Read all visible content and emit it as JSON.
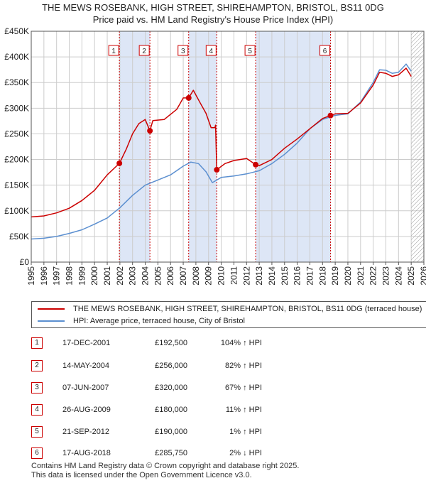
{
  "header": {
    "title_line1": "THE MEWS ROSEBANK, HIGH STREET, SHIREHAMPTON, BRISTOL, BS11 0DG",
    "title_line2": "Price paid vs. HM Land Registry's House Price Index (HPI)"
  },
  "colors": {
    "property": "#cc0000",
    "hpi": "#5b8fd0",
    "shade": "#dde6f6",
    "grid": "#cccccc"
  },
  "chart_data": {
    "type": "line",
    "xlim": [
      1995,
      2026
    ],
    "ylim": [
      0,
      450000
    ],
    "x_ticks": [
      "1995",
      "1996",
      "1997",
      "1998",
      "1999",
      "2000",
      "2001",
      "2002",
      "2003",
      "2004",
      "2005",
      "2006",
      "2007",
      "2008",
      "2009",
      "2010",
      "2011",
      "2012",
      "2013",
      "2014",
      "2015",
      "2016",
      "2017",
      "2018",
      "2019",
      "2020",
      "2021",
      "2022",
      "2023",
      "2024",
      "2025",
      "2026"
    ],
    "y_ticks": [
      {
        "value": 0,
        "label": "£0"
      },
      {
        "value": 50000,
        "label": "£50K"
      },
      {
        "value": 100000,
        "label": "£100K"
      },
      {
        "value": 150000,
        "label": "£150K"
      },
      {
        "value": 200000,
        "label": "£200K"
      },
      {
        "value": 250000,
        "label": "£250K"
      },
      {
        "value": 300000,
        "label": "£300K"
      },
      {
        "value": 350000,
        "label": "£350K"
      },
      {
        "value": 400000,
        "label": "£400K"
      },
      {
        "value": 450000,
        "label": "£450K"
      }
    ],
    "shaded_ranges": [
      [
        2001.96,
        2004.37
      ],
      [
        2007.43,
        2009.65
      ],
      [
        2012.72,
        2018.63
      ]
    ],
    "hatched_from": 2025.0,
    "series": [
      {
        "name": "THE MEWS ROSEBANK, HIGH STREET, SHIREHAMPTON, BRISTOL, BS11 0DG (terraced house)",
        "color": "#cc0000",
        "points": [
          [
            1995.0,
            88000
          ],
          [
            1996.0,
            90000
          ],
          [
            1997.0,
            96000
          ],
          [
            1998.0,
            105000
          ],
          [
            1999.0,
            120000
          ],
          [
            2000.0,
            140000
          ],
          [
            2001.0,
            170000
          ],
          [
            2001.96,
            192500
          ],
          [
            2002.5,
            220000
          ],
          [
            2003.0,
            250000
          ],
          [
            2003.5,
            270000
          ],
          [
            2004.0,
            278000
          ],
          [
            2004.37,
            256000
          ],
          [
            2004.6,
            276000
          ],
          [
            2005.5,
            278000
          ],
          [
            2006.5,
            298000
          ],
          [
            2007.0,
            320000
          ],
          [
            2007.43,
            320000
          ],
          [
            2007.8,
            335000
          ],
          [
            2008.3,
            312000
          ],
          [
            2008.8,
            290000
          ],
          [
            2009.2,
            262000
          ],
          [
            2009.5,
            262000
          ],
          [
            2009.55,
            267000
          ],
          [
            2009.65,
            180000
          ],
          [
            2010.3,
            192000
          ],
          [
            2011.0,
            198000
          ],
          [
            2012.0,
            202000
          ],
          [
            2012.72,
            190000
          ],
          [
            2013.0,
            188000
          ],
          [
            2014.0,
            200000
          ],
          [
            2015.0,
            222000
          ],
          [
            2016.0,
            240000
          ],
          [
            2017.0,
            260000
          ],
          [
            2018.0,
            280000
          ],
          [
            2018.63,
            285750
          ],
          [
            2019.0,
            289000
          ],
          [
            2020.0,
            290000
          ],
          [
            2021.0,
            310000
          ],
          [
            2022.0,
            345000
          ],
          [
            2022.5,
            370000
          ],
          [
            2023.0,
            368000
          ],
          [
            2023.5,
            362000
          ],
          [
            2024.0,
            365000
          ],
          [
            2024.6,
            378000
          ],
          [
            2025.0,
            362000
          ]
        ]
      },
      {
        "name": "HPI: Average price, terraced house, City of Bristol",
        "color": "#5b8fd0",
        "points": [
          [
            1995.0,
            45000
          ],
          [
            1996.0,
            46500
          ],
          [
            1997.0,
            50000
          ],
          [
            1998.0,
            56000
          ],
          [
            1999.0,
            63000
          ],
          [
            2000.0,
            74000
          ],
          [
            2001.0,
            86000
          ],
          [
            2002.0,
            106000
          ],
          [
            2003.0,
            130000
          ],
          [
            2004.0,
            150000
          ],
          [
            2005.0,
            160000
          ],
          [
            2006.0,
            170000
          ],
          [
            2007.0,
            187000
          ],
          [
            2007.6,
            195000
          ],
          [
            2008.2,
            192000
          ],
          [
            2008.8,
            176000
          ],
          [
            2009.3,
            155000
          ],
          [
            2010.0,
            165000
          ],
          [
            2011.0,
            168000
          ],
          [
            2012.0,
            172000
          ],
          [
            2013.0,
            178000
          ],
          [
            2014.0,
            192000
          ],
          [
            2015.0,
            210000
          ],
          [
            2016.0,
            232000
          ],
          [
            2017.0,
            260000
          ],
          [
            2018.0,
            278000
          ],
          [
            2019.0,
            286000
          ],
          [
            2020.0,
            289000
          ],
          [
            2021.0,
            312000
          ],
          [
            2022.0,
            350000
          ],
          [
            2022.5,
            375000
          ],
          [
            2023.0,
            374000
          ],
          [
            2023.5,
            368000
          ],
          [
            2024.0,
            370000
          ],
          [
            2024.6,
            386000
          ],
          [
            2025.0,
            372000
          ]
        ]
      }
    ],
    "sales": [
      {
        "label": "1",
        "x": 2001.96,
        "price": 192500,
        "date": "17-DEC-2001",
        "price_text": "£192,500",
        "hpi_text": "104% ↑ HPI"
      },
      {
        "label": "2",
        "x": 2004.37,
        "price": 256000,
        "date": "14-MAY-2004",
        "price_text": "£256,000",
        "hpi_text": "82% ↑ HPI"
      },
      {
        "label": "3",
        "x": 2007.43,
        "price": 320000,
        "date": "07-JUN-2007",
        "price_text": "£320,000",
        "hpi_text": "67% ↑ HPI"
      },
      {
        "label": "4",
        "x": 2009.65,
        "price": 180000,
        "date": "26-AUG-2009",
        "price_text": "£180,000",
        "hpi_text": "11% ↑ HPI"
      },
      {
        "label": "5",
        "x": 2012.72,
        "price": 190000,
        "date": "21-SEP-2012",
        "price_text": "£190,000",
        "hpi_text": "1% ↑ HPI"
      },
      {
        "label": "6",
        "x": 2018.63,
        "price": 285750,
        "date": "17-AUG-2018",
        "price_text": "£285,750",
        "hpi_text": "2% ↓ HPI"
      }
    ]
  },
  "legend": {
    "property_label": "THE MEWS ROSEBANK, HIGH STREET, SHIREHAMPTON, BRISTOL, BS11 0DG (terraced house)",
    "hpi_label": "HPI: Average price, terraced house, City of Bristol"
  },
  "footer": {
    "line1": "Contains HM Land Registry data © Crown copyright and database right 2025.",
    "line2": "This data is licensed under the Open Government Licence v3.0."
  }
}
